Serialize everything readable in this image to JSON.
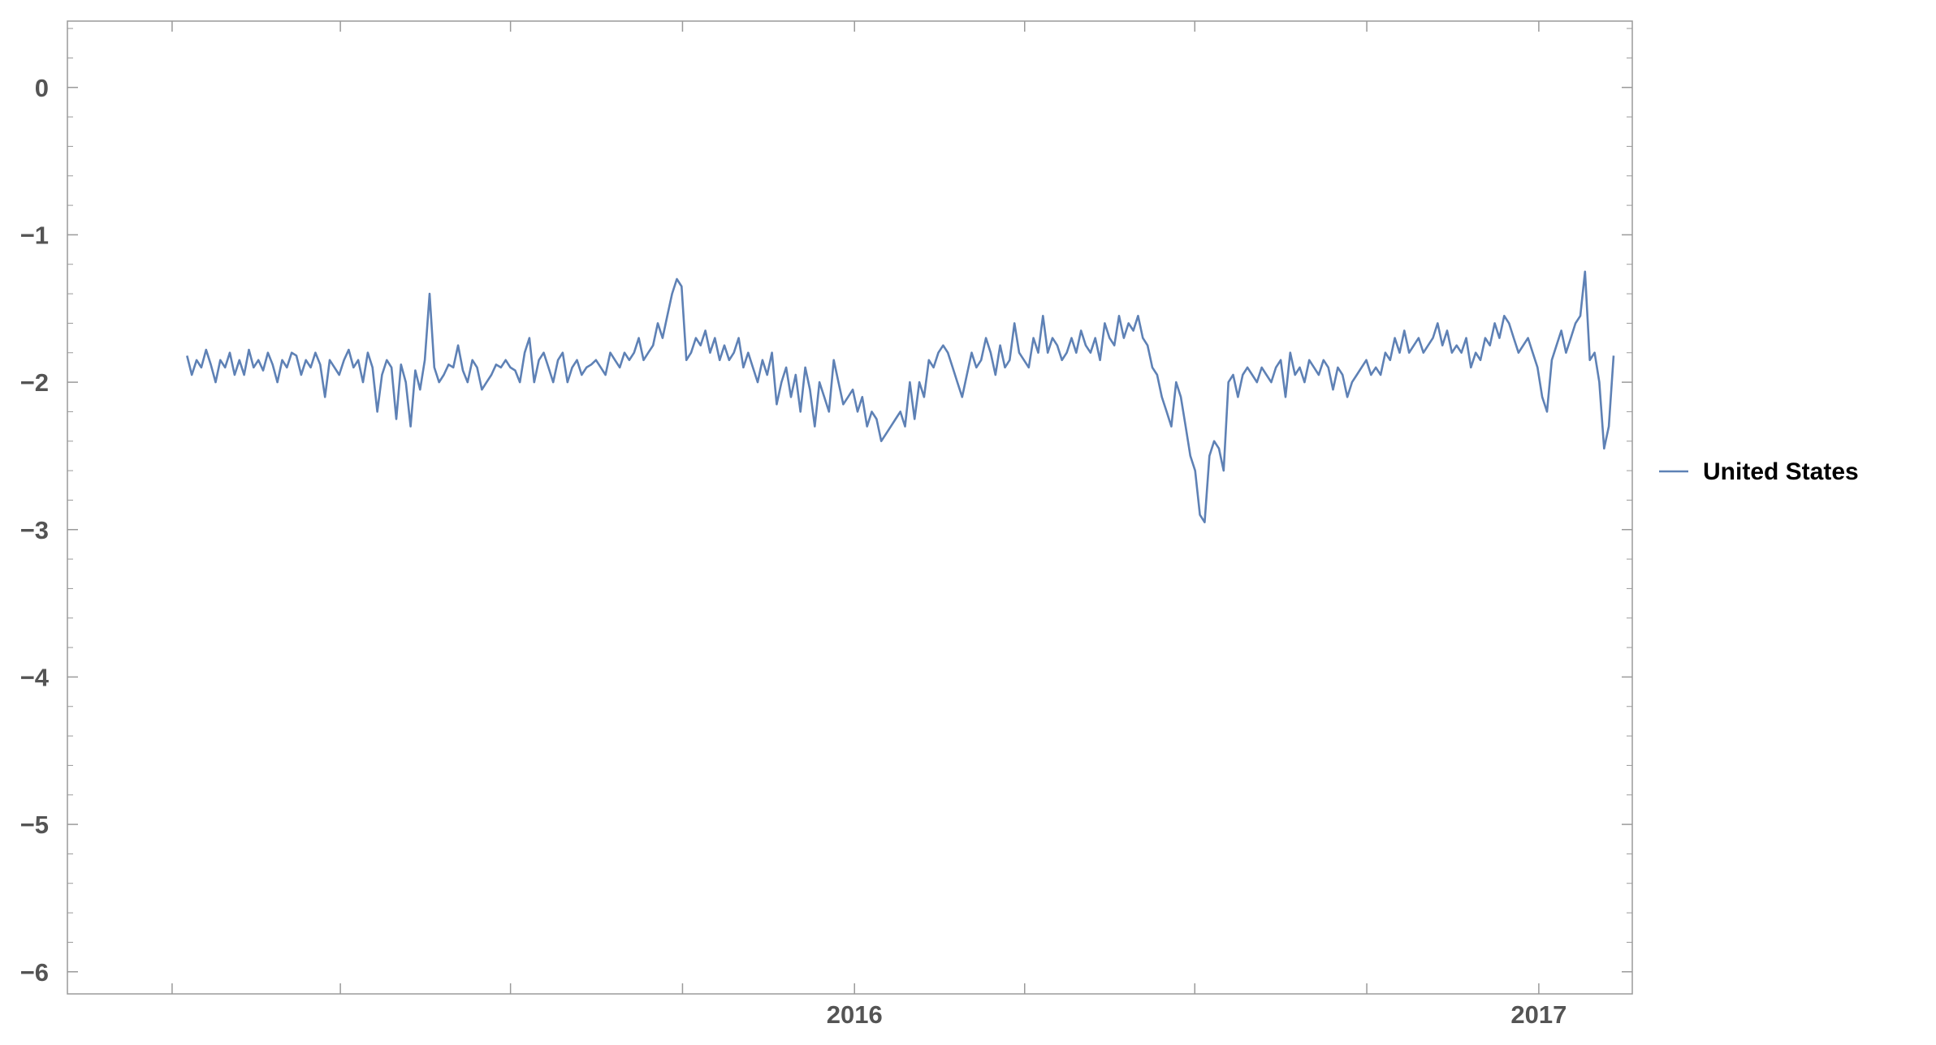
{
  "chart_data": {
    "type": "line",
    "title": "",
    "xlabel": "",
    "ylabel": "",
    "x_range": [
      "2015-01-09",
      "2017-02-10"
    ],
    "xlim": [
      "2014-11-06",
      "2017-02-20"
    ],
    "ylim": [
      -6.15,
      0.45
    ],
    "y_ticks": [
      0,
      -1,
      -2,
      -3,
      -4,
      -5,
      -6
    ],
    "y_tick_labels": [
      "0",
      "−1",
      "−2",
      "−3",
      "−4",
      "−5",
      "−6"
    ],
    "x_ticks": [
      "2015-01-01",
      "2015-04-01",
      "2015-07-01",
      "2015-10-01",
      "2016-01-01",
      "2016-04-01",
      "2016-07-01",
      "2016-10-01",
      "2017-01-01"
    ],
    "x_tick_labels": [
      "",
      "",
      "",
      "",
      "2016",
      "",
      "",
      "",
      "2017"
    ],
    "grid": false,
    "legend_position": "right",
    "series": [
      {
        "name": "United States",
        "color": "#5e81b5",
        "values": [
          -1.82,
          -1.95,
          -1.85,
          -1.9,
          -1.78,
          -1.88,
          -2.0,
          -1.85,
          -1.9,
          -1.8,
          -1.95,
          -1.85,
          -1.95,
          -1.78,
          -1.9,
          -1.85,
          -1.92,
          -1.8,
          -1.88,
          -2.0,
          -1.85,
          -1.9,
          -1.8,
          -1.82,
          -1.95,
          -1.85,
          -1.9,
          -1.8,
          -1.88,
          -2.1,
          -1.85,
          -1.9,
          -1.95,
          -1.85,
          -1.78,
          -1.9,
          -1.85,
          -2.0,
          -1.8,
          -1.9,
          -2.2,
          -1.95,
          -1.85,
          -1.9,
          -2.25,
          -1.88,
          -2.0,
          -2.3,
          -1.92,
          -2.05,
          -1.85,
          -1.4,
          -1.9,
          -2.0,
          -1.95,
          -1.88,
          -1.9,
          -1.75,
          -1.92,
          -2.0,
          -1.85,
          -1.9,
          -2.05,
          -2.0,
          -1.95,
          -1.88,
          -1.9,
          -1.85,
          -1.9,
          -1.92,
          -2.0,
          -1.8,
          -1.7,
          -2.0,
          -1.85,
          -1.8,
          -1.9,
          -2.0,
          -1.85,
          -1.8,
          -2.0,
          -1.9,
          -1.85,
          -1.95,
          -1.9,
          -1.88,
          -1.85,
          -1.9,
          -1.95,
          -1.8,
          -1.85,
          -1.9,
          -1.8,
          -1.85,
          -1.8,
          -1.7,
          -1.85,
          -1.8,
          -1.75,
          -1.6,
          -1.7,
          -1.55,
          -1.4,
          -1.3,
          -1.35,
          -1.85,
          -1.8,
          -1.7,
          -1.75,
          -1.65,
          -1.8,
          -1.7,
          -1.85,
          -1.75,
          -1.85,
          -1.8,
          -1.7,
          -1.9,
          -1.8,
          -1.9,
          -2.0,
          -1.85,
          -1.95,
          -1.8,
          -2.15,
          -2.0,
          -1.9,
          -2.1,
          -1.95,
          -2.2,
          -1.9,
          -2.05,
          -2.3,
          -2.0,
          -2.1,
          -2.2,
          -1.85,
          -2.0,
          -2.15,
          -2.1,
          -2.05,
          -2.2,
          -2.1,
          -2.3,
          -2.2,
          -2.25,
          -2.4,
          -2.35,
          -2.3,
          -2.25,
          -2.2,
          -2.3,
          -2.0,
          -2.25,
          -2.0,
          -2.1,
          -1.85,
          -1.9,
          -1.8,
          -1.75,
          -1.8,
          -1.9,
          -2.0,
          -2.1,
          -1.95,
          -1.8,
          -1.9,
          -1.85,
          -1.7,
          -1.8,
          -1.95,
          -1.75,
          -1.9,
          -1.85,
          -1.6,
          -1.8,
          -1.85,
          -1.9,
          -1.7,
          -1.8,
          -1.55,
          -1.8,
          -1.7,
          -1.75,
          -1.85,
          -1.8,
          -1.7,
          -1.8,
          -1.65,
          -1.75,
          -1.8,
          -1.7,
          -1.85,
          -1.6,
          -1.7,
          -1.75,
          -1.55,
          -1.7,
          -1.6,
          -1.65,
          -1.55,
          -1.7,
          -1.75,
          -1.9,
          -1.95,
          -2.1,
          -2.2,
          -2.3,
          -2.0,
          -2.1,
          -2.3,
          -2.5,
          -2.6,
          -2.9,
          -2.95,
          -2.5,
          -2.4,
          -2.45,
          -2.6,
          -2.0,
          -1.95,
          -2.1,
          -1.95,
          -1.9,
          -1.95,
          -2.0,
          -1.9,
          -1.95,
          -2.0,
          -1.9,
          -1.85,
          -2.1,
          -1.8,
          -1.95,
          -1.9,
          -2.0,
          -1.85,
          -1.9,
          -1.95,
          -1.85,
          -1.9,
          -2.05,
          -1.9,
          -1.95,
          -2.1,
          -2.0,
          -1.95,
          -1.9,
          -1.85,
          -1.95,
          -1.9,
          -1.95,
          -1.8,
          -1.85,
          -1.7,
          -1.8,
          -1.65,
          -1.8,
          -1.75,
          -1.7,
          -1.8,
          -1.75,
          -1.7,
          -1.6,
          -1.75,
          -1.65,
          -1.8,
          -1.75,
          -1.8,
          -1.7,
          -1.9,
          -1.8,
          -1.85,
          -1.7,
          -1.75,
          -1.6,
          -1.7,
          -1.55,
          -1.6,
          -1.7,
          -1.8,
          -1.75,
          -1.7,
          -1.8,
          -1.9,
          -2.1,
          -2.2,
          -1.85,
          -1.75,
          -1.65,
          -1.8,
          -1.7,
          -1.6,
          -1.55,
          -1.25,
          -1.85,
          -1.8,
          -2.0,
          -2.45,
          -2.3,
          -1.82
        ],
        "note": "rows filled"
      }
    ]
  }
}
